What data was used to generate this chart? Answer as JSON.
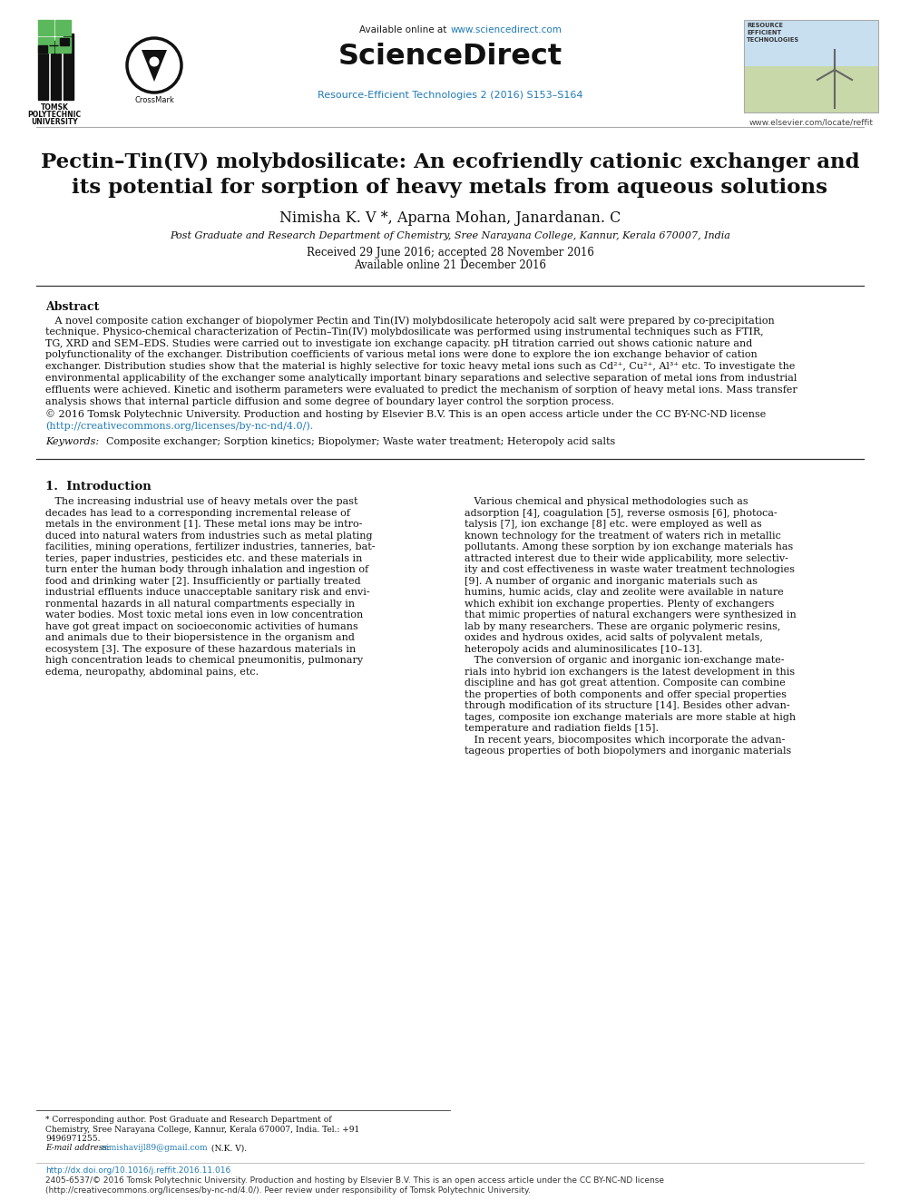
{
  "bg_color": "#ffffff",
  "available_online_pre": "Available online at ",
  "url_sciencedirect": "www.sciencedirect.com",
  "sciencedirect_text": "ScienceDirect",
  "journal_line": "Resource-Efficient Technologies 2 (2016) S153–S164",
  "elsevier_url": "www.elsevier.com/locate/reffit",
  "title_line1": "Pectin–Tin(IV) molybdosilicate: An ecofriendly cationic exchanger and",
  "title_line2": "its potential for sorption of heavy metals from aqueous solutions",
  "author_pre": "Nimisha K. V ",
  "author_star": "*",
  "author_post": ", Aparna Mohan, Janardanan. C",
  "affiliation": "Post Graduate and Research Department of Chemistry, Sree Narayana College, Kannur, Kerala 670007, India",
  "received": "Received 29 June 2016; accepted 28 November 2016",
  "available_online_date": "Available online 21 December 2016",
  "abstract_title": "Abstract",
  "abstract_body": "   A novel composite cation exchanger of biopolymer Pectin and Tin(IV) molybdosilicate heteropoly acid salt were prepared by co-precipitation\ntechnique. Physico-chemical characterization of Pectin–Tin(IV) molybdosilicate was performed using instrumental techniques such as FTIR,\nTG, XRD and SEM–EDS. Studies were carried out to investigate ion exchange capacity. pH titration carried out shows cationic nature and\npolyfunctionality of the exchanger. Distribution coefficients of various metal ions were done to explore the ion exchange behavior of cation\nexchanger. Distribution studies show that the material is highly selective for toxic heavy metal ions such as Cd²⁺, Cu²⁺, Al³⁺ etc. To investigate the\nenvironmental applicability of the exchanger some analytically important binary separations and selective separation of metal ions from industrial\neffluents were achieved. Kinetic and isotherm parameters were evaluated to predict the mechanism of sorption of heavy metal ions. Mass transfer\nanalysis shows that internal particle diffusion and some degree of boundary layer control the sorption process.",
  "copyright_line": "© 2016 Tomsk Polytechnic University. Production and hosting by Elsevier B.V. This is an open access article under the CC BY-NC-ND license",
  "cc_url": "(http://creativecommons.org/licenses/by-nc-nd/4.0/).",
  "keywords_italic": "Keywords:",
  "keywords_text": "  Composite exchanger; Sorption kinetics; Biopolymer; Waste water treatment; Heteropoly acid salts",
  "section1_title": "1.  Introduction",
  "intro_left_lines": [
    "   The increasing industrial use of heavy metals over the past",
    "decades has lead to a corresponding incremental release of",
    "metals in the environment [1]. These metal ions may be intro-",
    "duced into natural waters from industries such as metal plating",
    "facilities, mining operations, fertilizer industries, tanneries, bat-",
    "teries, paper industries, pesticides etc. and these materials in",
    "turn enter the human body through inhalation and ingestion of",
    "food and drinking water [2]. Insufficiently or partially treated",
    "industrial effluents induce unacceptable sanitary risk and envi-",
    "ronmental hazards in all natural compartments especially in",
    "water bodies. Most toxic metal ions even in low concentration",
    "have got great impact on socioeconomic activities of humans",
    "and animals due to their biopersistence in the organism and",
    "ecosystem [3]. The exposure of these hazardous materials in",
    "high concentration leads to chemical pneumonitis, pulmonary",
    "edema, neuropathy, abdominal pains, etc."
  ],
  "intro_right_lines": [
    "   Various chemical and physical methodologies such as",
    "adsorption [4], coagulation [5], reverse osmosis [6], photoca-",
    "talysis [7], ion exchange [8] etc. were employed as well as",
    "known technology for the treatment of waters rich in metallic",
    "pollutants. Among these sorption by ion exchange materials has",
    "attracted interest due to their wide applicability, more selectiv-",
    "ity and cost effectiveness in waste water treatment technologies",
    "[9]. A number of organic and inorganic materials such as",
    "humins, humic acids, clay and zeolite were available in nature",
    "which exhibit ion exchange properties. Plenty of exchangers",
    "that mimic properties of natural exchangers were synthesized in",
    "lab by many researchers. These are organic polymeric resins,",
    "oxides and hydrous oxides, acid salts of polyvalent metals,",
    "heteropoly acids and aluminosilicates [10–13].",
    "   The conversion of organic and inorganic ion-exchange mate-",
    "rials into hybrid ion exchangers is the latest development in this",
    "discipline and has got great attention. Composite can combine",
    "the properties of both components and offer special properties",
    "through modification of its structure [14]. Besides other advan-",
    "tages, composite ion exchange materials are more stable at high",
    "temperature and radiation fields [15].",
    "   In recent years, biocomposites which incorporate the advan-",
    "tageous properties of both biopolymers and inorganic materials"
  ],
  "footnote_lines": [
    "* Corresponding author. Post Graduate and Research Department of",
    "Chemistry, Sree Narayana College, Kannur, Kerala 670007, India. Tel.: +91",
    "9496971255."
  ],
  "footnote_email_label": "E-mail address: ",
  "footnote_email": "nimishavijl89@gmail.com",
  "footnote_email_suffix": " (N.K. V).",
  "bottom_doi": "http://dx.doi.org/10.1016/j.reffit.2016.11.016",
  "bottom_issn": "2405-6537/© 2016 Tomsk Polytechnic University. Production and hosting by Elsevier B.V. This is an open access article under the CC BY-NC-ND license",
  "bottom_cc": "(http://creativecommons.org/licenses/by-nc-nd/4.0/). Peer review under responsibility of Tomsk Polytechnic University.",
  "color_link": "#1f7ab5",
  "color_text": "#1a1a1a",
  "color_gray": "#555555",
  "color_sep": "#888888"
}
